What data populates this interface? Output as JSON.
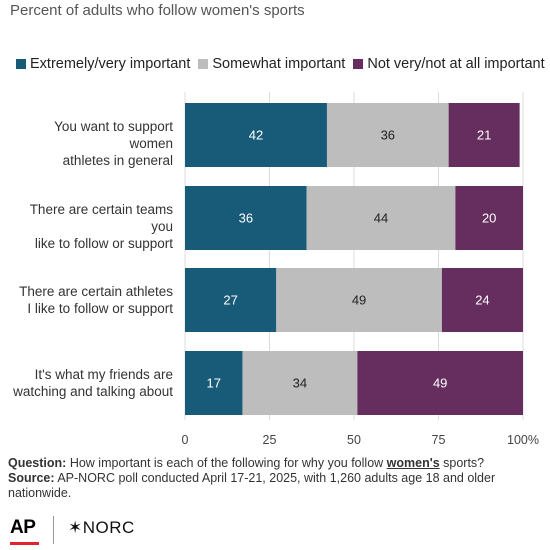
{
  "header": {
    "subtitle": "Percent of adults who follow women's sports"
  },
  "legend": [
    {
      "label": "Extremely/very important",
      "color": "#185b78"
    },
    {
      "label": "Somewhat important",
      "color": "#bdbdbd"
    },
    {
      "label": "Not very/not at all important",
      "color": "#662d5f"
    }
  ],
  "chart_data": {
    "type": "bar",
    "orientation": "horizontal",
    "stacked": true,
    "categories": [
      [
        "You want to support women",
        "athletes in general"
      ],
      [
        "There are certain teams you",
        "like to follow or support"
      ],
      [
        "There are certain athletes",
        "I like to follow or support"
      ],
      [
        "It's what my friends are",
        "watching and talking about"
      ]
    ],
    "series": [
      {
        "name": "Extremely/very important",
        "color": "#185b78",
        "label_color": "#ffffff",
        "values": [
          42,
          36,
          27,
          17
        ]
      },
      {
        "name": "Somewhat important",
        "color": "#bdbdbd",
        "label_color": "#222222",
        "values": [
          36,
          44,
          49,
          34
        ]
      },
      {
        "name": "Not very/not at all important",
        "color": "#662d5f",
        "label_color": "#ffffff",
        "values": [
          21,
          20,
          24,
          49
        ]
      }
    ],
    "xlim": [
      0,
      100
    ],
    "xticks": [
      "0",
      "25",
      "50",
      "75",
      "100%"
    ],
    "xtick_values": [
      0,
      25,
      50,
      75,
      100
    ],
    "grid": true,
    "legend_position": "top"
  },
  "footer": {
    "question_label": "Question:",
    "question_text": "How important is each of the following for why you follow",
    "question_emphasis": "women's",
    "question_end": "sports?",
    "source_label": "Source:",
    "source_text": "AP-NORC poll conducted April 17-21, 2025, with 1,260 adults age 18 and older nationwide."
  },
  "logos": {
    "ap": "AP",
    "norc": "NORC"
  }
}
